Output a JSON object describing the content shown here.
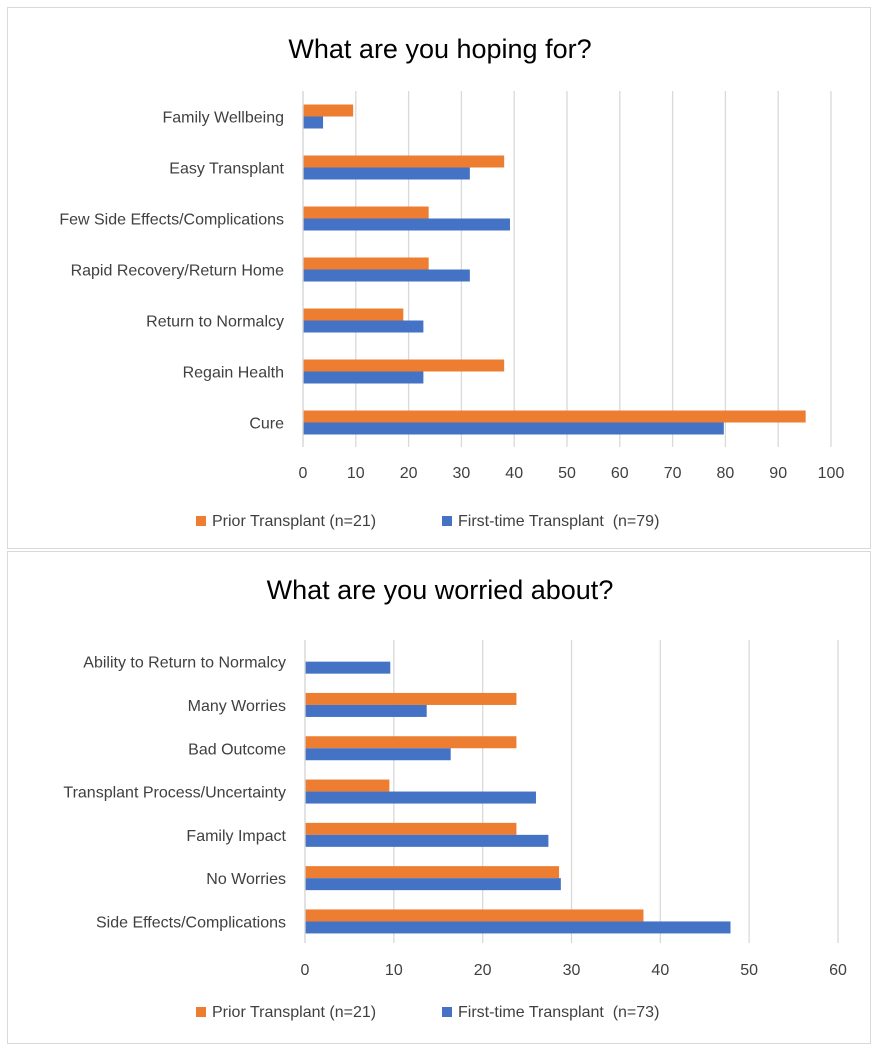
{
  "colors": {
    "prior": "#ED7D31",
    "first": "#4472C4",
    "grid": "#d9d9d9"
  },
  "chart_data": [
    {
      "type": "bar",
      "orientation": "horizontal",
      "title": "What are you hoping for?",
      "categories": [
        "Family Wellbeing",
        "Easy Transplant",
        "Few Side Effects/Complications",
        "Rapid Recovery/Return Home",
        "Return to Normalcy",
        "Regain Health",
        "Cure"
      ],
      "series": [
        {
          "name": "Prior Transplant (n=21)",
          "values": [
            9.5,
            38.1,
            23.8,
            23.8,
            19.0,
            38.1,
            95.2
          ]
        },
        {
          "name": "First-time Transplant  (n=79)",
          "values": [
            3.8,
            31.6,
            39.2,
            31.6,
            22.8,
            22.8,
            79.7
          ]
        }
      ],
      "xlim": [
        0,
        100
      ],
      "xticks": [
        "0",
        "10",
        "20",
        "30",
        "40",
        "50",
        "60",
        "70",
        "80",
        "90",
        "100"
      ],
      "grid": true,
      "legend": "bottom"
    },
    {
      "type": "bar",
      "orientation": "horizontal",
      "title": "What are you worried about?",
      "categories": [
        "Ability to Return to Normalcy",
        "Many Worries",
        "Bad Outcome",
        "Transplant Process/Uncertainty",
        "Family Impact",
        "No Worries",
        "Side Effects/Complications"
      ],
      "series": [
        {
          "name": "Prior Transplant (n=21)",
          "values": [
            0,
            23.8,
            23.8,
            9.5,
            23.8,
            28.6,
            38.1
          ]
        },
        {
          "name": "First-time Transplant  (n=73)",
          "values": [
            9.6,
            13.7,
            16.4,
            26.0,
            27.4,
            28.8,
            47.9
          ]
        }
      ],
      "xlim": [
        0,
        60
      ],
      "xticks": [
        "0",
        "10",
        "20",
        "30",
        "40",
        "50",
        "60"
      ],
      "grid": true,
      "legend": "bottom"
    }
  ]
}
